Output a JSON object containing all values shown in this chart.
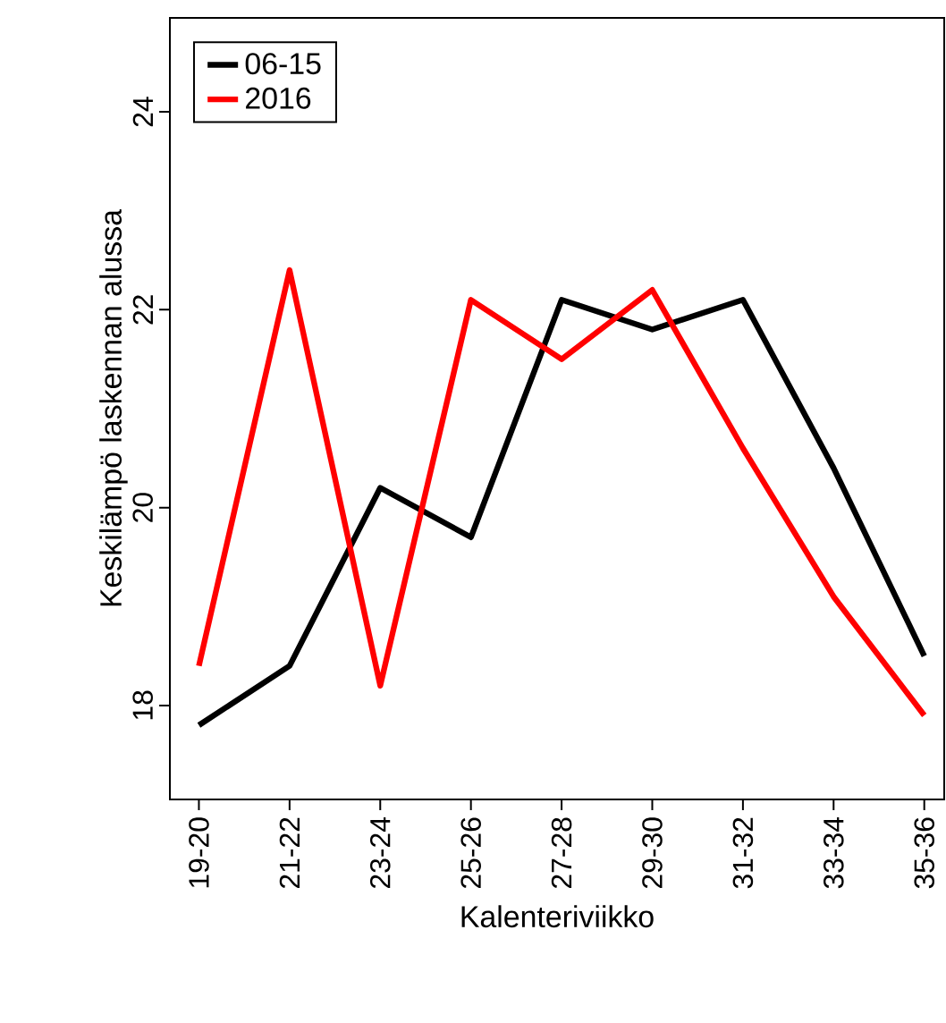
{
  "chart_data": {
    "type": "line",
    "xlabel": "Kalenteriviikko",
    "ylabel": "Keskilämpö laskennan alussa",
    "categories": [
      "19-20",
      "21-22",
      "23-24",
      "25-26",
      "27-28",
      "29-30",
      "31-32",
      "33-34",
      "35-36"
    ],
    "series": [
      {
        "name": "06-15",
        "color": "#000000",
        "values": [
          17.8,
          18.4,
          20.2,
          19.7,
          22.1,
          21.8,
          22.1,
          20.4,
          18.5
        ]
      },
      {
        "name": "2016",
        "color": "#ff0000",
        "values": [
          18.4,
          22.4,
          18.2,
          22.1,
          21.5,
          22.2,
          20.6,
          19.1,
          17.9
        ]
      }
    ],
    "ylim": [
      17.05,
      24.95
    ],
    "yticks": [
      18,
      20,
      22,
      24
    ],
    "legend": "top left",
    "grid": false
  }
}
